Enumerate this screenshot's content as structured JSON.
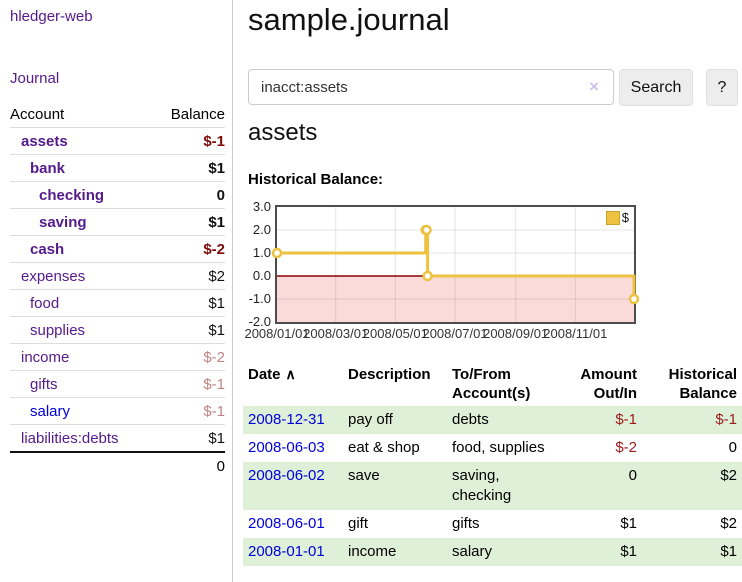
{
  "colors": {
    "link_purple": "#551a8b",
    "link_blue": "#0000dd",
    "negative_strong": "#7d0b0b",
    "negative_muted": "#c08484",
    "table_negative": "#9c1b1b",
    "row_green": "#dff0d8",
    "chart_gold": "#edc240",
    "chart_negative_fill": "#fbdada",
    "chart_zero_line": "#8b0000"
  },
  "nav": {
    "brand": "hledger-web",
    "journal": "Journal"
  },
  "sidebar": {
    "columns": {
      "account": "Account",
      "balance": "Balance"
    },
    "accounts": [
      {
        "name": "assets",
        "indent": 0,
        "bold": true,
        "balance": "$-1",
        "balance_style": "neg-strong"
      },
      {
        "name": "bank",
        "indent": 1,
        "bold": true,
        "balance": "$1",
        "balance_style": "pos"
      },
      {
        "name": "checking",
        "indent": 2,
        "bold": true,
        "balance": "0",
        "balance_style": "pos"
      },
      {
        "name": "saving",
        "indent": 2,
        "bold": true,
        "balance": "$1",
        "balance_style": "pos"
      },
      {
        "name": "cash",
        "indent": 1,
        "bold": true,
        "balance": "$-2",
        "balance_style": "neg-strong"
      },
      {
        "name": "expenses",
        "indent": 0,
        "bold": false,
        "balance": "$2",
        "balance_style": "pos"
      },
      {
        "name": "food",
        "indent": 1,
        "bold": false,
        "balance": "$1",
        "balance_style": "pos"
      },
      {
        "name": "supplies",
        "indent": 1,
        "bold": false,
        "balance": "$1",
        "balance_style": "pos"
      },
      {
        "name": "income",
        "indent": 0,
        "bold": false,
        "balance": "$-2",
        "balance_style": "neg"
      },
      {
        "name": "gifts",
        "indent": 1,
        "bold": false,
        "balance": "$-1",
        "balance_style": "neg"
      },
      {
        "name": "salary",
        "indent": 1,
        "bold": false,
        "balance": "$-1",
        "balance_style": "neg",
        "link_style": "unvisited"
      },
      {
        "name": "liabilities:debts",
        "indent": 0,
        "bold": false,
        "balance": "$1",
        "balance_style": "pos"
      }
    ],
    "total": "0"
  },
  "header": {
    "title": "sample.journal"
  },
  "search": {
    "value": "inacct:assets",
    "clear": "×",
    "button_label": "Search",
    "help_label": "?"
  },
  "account_view": {
    "heading": "assets",
    "chart_title": "Historical Balance:"
  },
  "chart_data": {
    "type": "line",
    "step": true,
    "title": "Historical Balance",
    "series": [
      {
        "name": "$",
        "color": "#edc240",
        "points": [
          [
            "2008-01-01",
            1
          ],
          [
            "2008-06-01",
            2
          ],
          [
            "2008-06-02",
            2
          ],
          [
            "2008-06-03",
            0
          ],
          [
            "2008-12-31",
            -1
          ]
        ]
      }
    ],
    "x_range": [
      "2008-01-01",
      "2008-12-31"
    ],
    "ylim": [
      -2,
      3
    ],
    "y_ticks": [
      {
        "value": 3,
        "label": "3.0"
      },
      {
        "value": 2,
        "label": "2.0"
      },
      {
        "value": 1,
        "label": "1.0"
      },
      {
        "value": 0,
        "label": "0.0"
      },
      {
        "value": -1,
        "label": "-1.0"
      },
      {
        "value": -2,
        "label": "-2.0"
      }
    ],
    "x_ticks": [
      {
        "date": "2008-01-01",
        "label": "2008/01/01"
      },
      {
        "date": "2008-03-01",
        "label": "2008/03/01"
      },
      {
        "date": "2008-05-01",
        "label": "2008/05/01"
      },
      {
        "date": "2008-07-01",
        "label": "2008/07/01"
      },
      {
        "date": "2008-09-01",
        "label": "2008/09/01"
      },
      {
        "date": "2008-11-01",
        "label": "2008/11/01"
      }
    ],
    "grid": true,
    "negative_region_shaded": true,
    "legend": {
      "label": "$",
      "position": "top-right"
    }
  },
  "register": {
    "columns": [
      "Date",
      "Description",
      "To/From Account(s)",
      "Amount Out/In",
      "Historical Balance"
    ],
    "sort_icon": "∧",
    "rows": [
      {
        "date": "2008-12-31",
        "description": "pay off",
        "accounts": "debts",
        "amount": "$-1",
        "amount_negative": true,
        "balance": "$-1",
        "balance_negative": true
      },
      {
        "date": "2008-06-03",
        "description": "eat & shop",
        "accounts": "food, supplies",
        "amount": "$-2",
        "amount_negative": true,
        "balance": "0",
        "balance_negative": false
      },
      {
        "date": "2008-06-02",
        "description": "save",
        "accounts": "saving, checking",
        "amount": "0",
        "amount_negative": false,
        "balance": "$2",
        "balance_negative": false
      },
      {
        "date": "2008-06-01",
        "description": "gift",
        "accounts": "gifts",
        "amount": "$1",
        "amount_negative": false,
        "balance": "$2",
        "balance_negative": false
      },
      {
        "date": "2008-01-01",
        "description": "income",
        "accounts": "salary",
        "amount": "$1",
        "amount_negative": false,
        "balance": "$1",
        "balance_negative": false
      }
    ]
  }
}
